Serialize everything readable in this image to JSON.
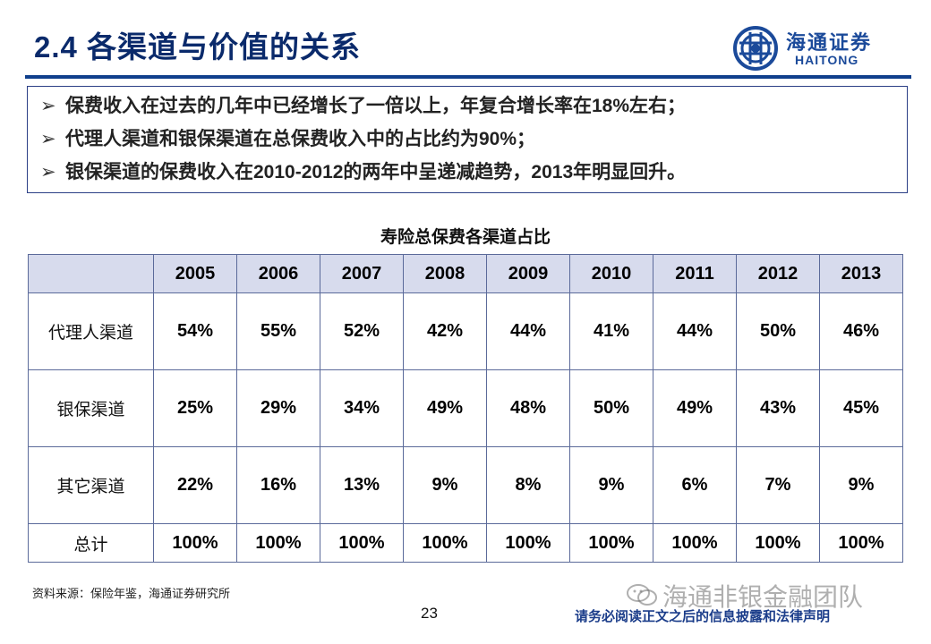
{
  "header": {
    "title": "2.4 各渠道与价值的关系",
    "logo_cn": "海通证券",
    "logo_en": "HAITONG"
  },
  "bullets": [
    "保费收入在过去的几年中已经增长了一倍以上，年复合增长率在18%左右；",
    "代理人渠道和银保渠道在总保费收入中的占比约为90%；",
    "银保渠道的保费收入在2010-2012的两年中呈递减趋势，2013年明显回升。"
  ],
  "bullet_marker": "➢",
  "table": {
    "title": "寿险总保费各渠道占比",
    "years": [
      "2005",
      "2006",
      "2007",
      "2008",
      "2009",
      "2010",
      "2011",
      "2012",
      "2013"
    ],
    "rows": [
      {
        "label": "代理人渠道",
        "values": [
          "54%",
          "55%",
          "52%",
          "42%",
          "44%",
          "41%",
          "44%",
          "50%",
          "46%"
        ]
      },
      {
        "label": "银保渠道",
        "values": [
          "25%",
          "29%",
          "34%",
          "49%",
          "48%",
          "50%",
          "49%",
          "43%",
          "45%"
        ]
      },
      {
        "label": "其它渠道",
        "values": [
          "22%",
          "16%",
          "13%",
          "9%",
          "8%",
          "9%",
          "6%",
          "7%",
          "9%"
        ]
      },
      {
        "label": "总计",
        "values": [
          "100%",
          "100%",
          "100%",
          "100%",
          "100%",
          "100%",
          "100%",
          "100%",
          "100%"
        ]
      }
    ]
  },
  "footer": {
    "source": "资料来源：保险年鉴，海通证券研究所",
    "watermark": "海通非银金融团队",
    "page_number": "23",
    "disclaimer": "请务必阅读正文之后的信息披露和法律声明"
  },
  "colors": {
    "title": "#0a2a6b",
    "header_line": "#0f3f8c",
    "table_header_bg": "#d7dbed",
    "border": "#5b6a9a",
    "disclaimer": "#1b3d8a"
  },
  "icons": {
    "logo": "haitong-logo-icon",
    "bullet": "arrow-bullet-icon",
    "watermark": "wechat-icon"
  }
}
